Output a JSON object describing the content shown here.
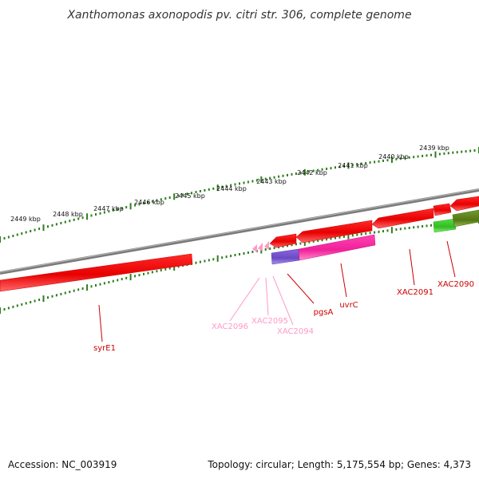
{
  "title": "Xanthomonas axonopodis pv. citri str. 306, complete genome",
  "footer": {
    "accession": "Accession: NC_003919",
    "summary": "Topology: circular; Length: 5,175,554 bp; Genes: 4,373"
  },
  "scale_labels": [
    "2449 kbp",
    "2448 kbp",
    "2447 kbp",
    "2446 kbp",
    "2445 kbp",
    "2444 kbp",
    "2443 kbp",
    "2442 kbp",
    "2441 kbp",
    "2440 kbp",
    "2439 kbp"
  ],
  "genes": {
    "syrE1": "syrE1",
    "xac2096": "XAC2096",
    "xac2095": "XAC2095",
    "xac2094": "XAC2094",
    "pgsA": "pgsA",
    "uvrC": "uvrC",
    "xac2091": "XAC2091",
    "xac2090": "XAC2090"
  },
  "colors": {
    "backbone": "#808080",
    "tick": "#2e7d1e",
    "red_gene": "#ee0000",
    "pink_gene": "#ff33aa",
    "blue_gene": "#7755cc",
    "light_pink": "#ff99c8",
    "green_gene": "#44cc33",
    "olive_gene": "#668822"
  }
}
